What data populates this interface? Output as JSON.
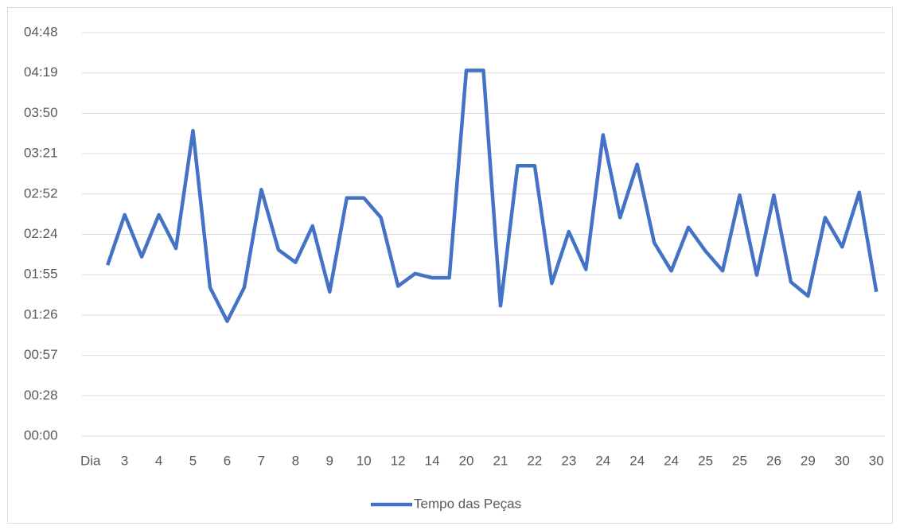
{
  "chart_data": {
    "type": "line",
    "categories": [
      "Dia",
      null,
      "3",
      null,
      "4",
      null,
      "5",
      null,
      "6",
      null,
      "7",
      null,
      "8",
      null,
      "9",
      null,
      "10",
      null,
      "12",
      null,
      "14",
      null,
      "20",
      null,
      "21",
      null,
      "22",
      null,
      "23",
      null,
      "24",
      null,
      "24",
      null,
      "24",
      null,
      "25",
      null,
      "25",
      null,
      "26",
      null,
      "29",
      null,
      "30",
      null,
      "30"
    ],
    "series": [
      {
        "name": "Tempo das Peças",
        "color": "#4472c4",
        "values": [
          null,
          122,
          158,
          128,
          158,
          134,
          218,
          106,
          82,
          106,
          176,
          133,
          124,
          150,
          103,
          170,
          170,
          156,
          107,
          116,
          113,
          113,
          261,
          261,
          93,
          193,
          193,
          109,
          146,
          119,
          215,
          156,
          194,
          138,
          118,
          149,
          132,
          118,
          172,
          115,
          172,
          110,
          100,
          156,
          135,
          174,
          103
        ]
      }
    ],
    "ylim": [
      0,
      288
    ],
    "yticks": [
      {
        "value": 0,
        "label": "00:00"
      },
      {
        "value": 28.8,
        "label": "00:28"
      },
      {
        "value": 57.6,
        "label": "00:57"
      },
      {
        "value": 86.4,
        "label": "01:26"
      },
      {
        "value": 115.2,
        "label": "01:55"
      },
      {
        "value": 144,
        "label": "02:24"
      },
      {
        "value": 172.8,
        "label": "02:52"
      },
      {
        "value": 201.6,
        "label": "03:21"
      },
      {
        "value": 230.4,
        "label": "03:50"
      },
      {
        "value": 259.2,
        "label": "04:19"
      },
      {
        "value": 288,
        "label": "04:48"
      }
    ],
    "grid": true,
    "legend": "bottom"
  }
}
